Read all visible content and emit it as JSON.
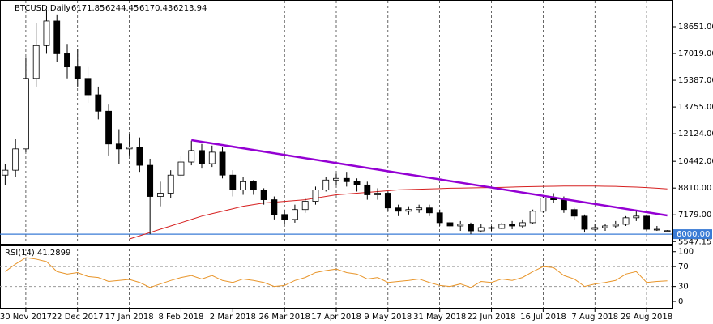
{
  "chart_data": [
    {
      "type": "candlestick",
      "title": "BTCUSD,Daily",
      "categories": [
        null,
        null,
        "30 Nov 2017",
        null,
        null,
        null,
        null,
        "22 Dec 2017",
        null,
        null,
        null,
        null,
        "17 Jan 2018",
        null,
        null,
        null,
        null,
        "8 Feb 2018",
        null,
        null,
        null,
        null,
        "2 Mar 2018",
        null,
        null,
        null,
        null,
        "26 Mar 2018",
        null,
        null,
        null,
        null,
        "17 Apr 2018",
        null,
        null,
        null,
        null,
        "9 May 2018",
        null,
        null,
        null,
        null,
        "31 May 2018",
        null,
        null,
        null,
        null,
        "22 Jun 2018",
        null,
        null,
        null,
        null,
        "16 Jul 2018",
        null,
        null,
        null,
        null,
        "7 Aug 2018",
        null,
        null,
        null,
        null,
        "29 Aug 2018",
        null,
        null
      ],
      "open": [
        9600,
        9900,
        11200,
        15500,
        17500,
        19000,
        17000,
        16200,
        15500,
        14500,
        13500,
        11500,
        11200,
        11300,
        10200,
        8300,
        8500,
        9600,
        10400,
        11100,
        10300,
        11000,
        9600,
        8700,
        9200,
        8700,
        8100,
        7200,
        6900,
        7500,
        8000,
        8700,
        9300,
        9400,
        9200,
        9000,
        8400,
        8500,
        7600,
        7400,
        7500,
        7600,
        7300,
        6700,
        6500,
        6600,
        6200,
        6400,
        6350,
        6600,
        6500,
        6700,
        7400,
        8200,
        8100,
        7500,
        7100,
        6300,
        6400,
        6500,
        6600,
        7000,
        7100,
        6300,
        6171.85
      ],
      "high": [
        10300,
        11800,
        16800,
        18900,
        19700,
        19400,
        17600,
        17300,
        16200,
        15000,
        13900,
        12400,
        12100,
        11900,
        10600,
        9200,
        9900,
        10800,
        11700,
        11500,
        11400,
        11300,
        9900,
        9500,
        9300,
        8800,
        8300,
        7500,
        7800,
        8200,
        8900,
        9500,
        9700,
        9800,
        9400,
        9200,
        8800,
        8600,
        7800,
        7700,
        7800,
        7800,
        7500,
        6900,
        6800,
        6700,
        6600,
        6500,
        6700,
        6800,
        6900,
        7500,
        8400,
        8500,
        8300,
        7600,
        7200,
        6600,
        6600,
        6800,
        7100,
        7400,
        7200,
        6500,
        6244.45
      ],
      "low": [
        9000,
        9500,
        11000,
        15000,
        17000,
        16500,
        15500,
        15000,
        14000,
        13000,
        10800,
        10300,
        10800,
        9800,
        6000,
        7700,
        8200,
        9400,
        10200,
        10000,
        10100,
        9400,
        8300,
        8400,
        8400,
        7800,
        6900,
        6600,
        6700,
        7300,
        7800,
        8600,
        9000,
        8900,
        8600,
        8100,
        8100,
        7400,
        7100,
        7200,
        7300,
        7100,
        6500,
        6300,
        6200,
        6000,
        6100,
        6200,
        6300,
        6300,
        6400,
        6600,
        7300,
        7900,
        7300,
        6900,
        6100,
        6200,
        6200,
        6400,
        6500,
        6800,
        6200,
        6200,
        6170.43
      ],
      "close": [
        9900,
        11200,
        15500,
        17500,
        19000,
        17000,
        16200,
        15500,
        14500,
        13500,
        11500,
        11200,
        11300,
        10200,
        8300,
        8500,
        9600,
        10400,
        11100,
        10300,
        11000,
        9600,
        8700,
        9200,
        8700,
        8100,
        7200,
        6900,
        7500,
        8000,
        8700,
        9300,
        9400,
        9200,
        9000,
        8400,
        8500,
        7600,
        7400,
        7500,
        7600,
        7300,
        6700,
        6500,
        6600,
        6200,
        6400,
        6350,
        6600,
        6500,
        6700,
        7400,
        8200,
        8100,
        7500,
        7100,
        6300,
        6400,
        6500,
        6600,
        7000,
        7100,
        6300,
        6300,
        6213.94
      ],
      "bull_color": "#ffffff",
      "bear_color": "#000000",
      "ma": {
        "color": "#d62020",
        "values": [
          null,
          null,
          null,
          null,
          null,
          null,
          null,
          null,
          null,
          null,
          null,
          null,
          5700,
          5900,
          6100,
          6300,
          6500,
          6700,
          6900,
          7100,
          7250,
          7400,
          7550,
          7700,
          7800,
          7900,
          7950,
          8000,
          8050,
          8100,
          8200,
          8300,
          8400,
          8450,
          8500,
          8550,
          8600,
          8650,
          8700,
          8720,
          8740,
          8760,
          8780,
          8800,
          8810,
          8820,
          8830,
          8840,
          8850,
          8870,
          8890,
          8900,
          8910,
          8920,
          8930,
          8930,
          8930,
          8930,
          8920,
          8910,
          8890,
          8870,
          8840,
          8800,
          8760
        ]
      },
      "trendline": {
        "color": "#9400d3",
        "start": 18,
        "end": 64,
        "values": [
          11735,
          7141
        ]
      },
      "hline": {
        "value": 6000,
        "label": "6000.00",
        "color": "#3a7bd5"
      },
      "ylim": [
        5461,
        20084
      ],
      "yticks": [
        {
          "value": 18651,
          "label": "18651.00"
        },
        {
          "value": 17019,
          "label": "17019.00"
        },
        {
          "value": 15387,
          "label": "15387.00"
        },
        {
          "value": 13755,
          "label": "13755.00"
        },
        {
          "value": 12124,
          "label": "12124.00"
        },
        {
          "value": 10442,
          "label": "10442.00"
        },
        {
          "value": 8810,
          "label": "8810.00"
        },
        {
          "value": 7179,
          "label": "7179.00"
        },
        {
          "value": 5547.15,
          "label": "5547.15"
        }
      ],
      "grid": true
    },
    {
      "type": "line",
      "title": "RSI(14) 41.2899",
      "color": "#e8952a",
      "values": [
        60,
        75,
        88,
        85,
        80,
        60,
        55,
        58,
        50,
        48,
        40,
        42,
        44,
        38,
        28,
        35,
        42,
        48,
        52,
        45,
        52,
        42,
        38,
        45,
        42,
        38,
        30,
        32,
        42,
        48,
        58,
        62,
        65,
        58,
        55,
        45,
        48,
        38,
        40,
        42,
        45,
        38,
        32,
        30,
        35,
        28,
        40,
        38,
        45,
        42,
        48,
        60,
        70,
        68,
        52,
        45,
        30,
        35,
        38,
        42,
        55,
        60,
        38,
        40,
        41.2899
      ],
      "ylim": [
        -13,
        111
      ],
      "yticks": [
        0,
        30,
        70,
        100
      ],
      "levels": [
        30,
        70
      ]
    }
  ]
}
